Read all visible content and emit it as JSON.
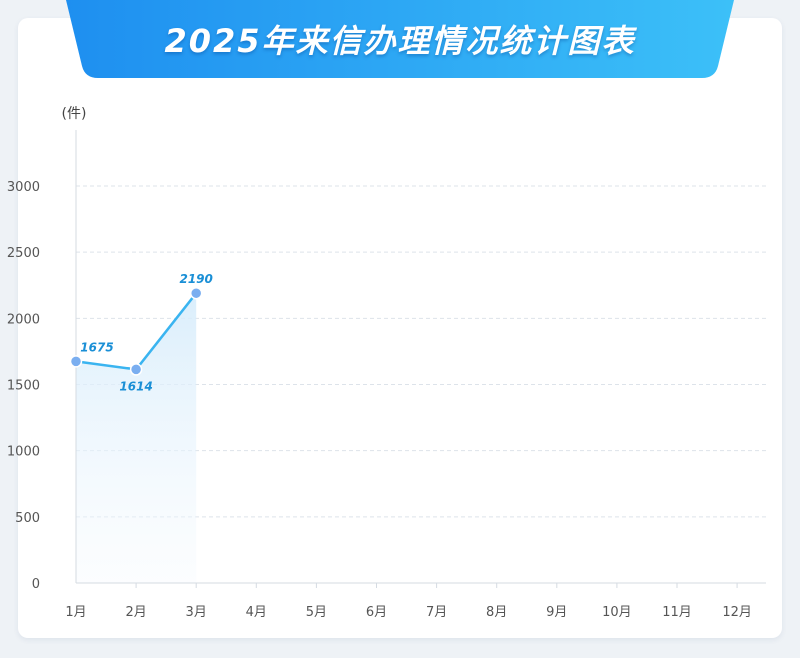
{
  "title": "2025年来信办理情况统计图表",
  "chart_data": {
    "type": "line",
    "title": "2025年来信办理情况统计图表",
    "ylabel": "(件)",
    "xlabel": "",
    "categories": [
      "1月",
      "2月",
      "3月",
      "4月",
      "5月",
      "6月",
      "7月",
      "8月",
      "9月",
      "10月",
      "11月",
      "12月"
    ],
    "series": [
      {
        "values": [
          1675,
          1614,
          2190,
          null,
          null,
          null,
          null,
          null,
          null,
          null,
          null,
          null
        ]
      }
    ],
    "ylim": [
      0,
      3000
    ],
    "yticks": [
      0,
      500,
      1000,
      1500,
      2000,
      2500,
      3000
    ],
    "data_labels": [
      "1675",
      "1614",
      "2190"
    ],
    "grid": true,
    "line_color": "#3ab4f0",
    "point_color": "#7aaef0",
    "label_color": "#1a8fd6",
    "banner_colors": [
      "#1e8ff0",
      "#3cc0f8"
    ]
  }
}
